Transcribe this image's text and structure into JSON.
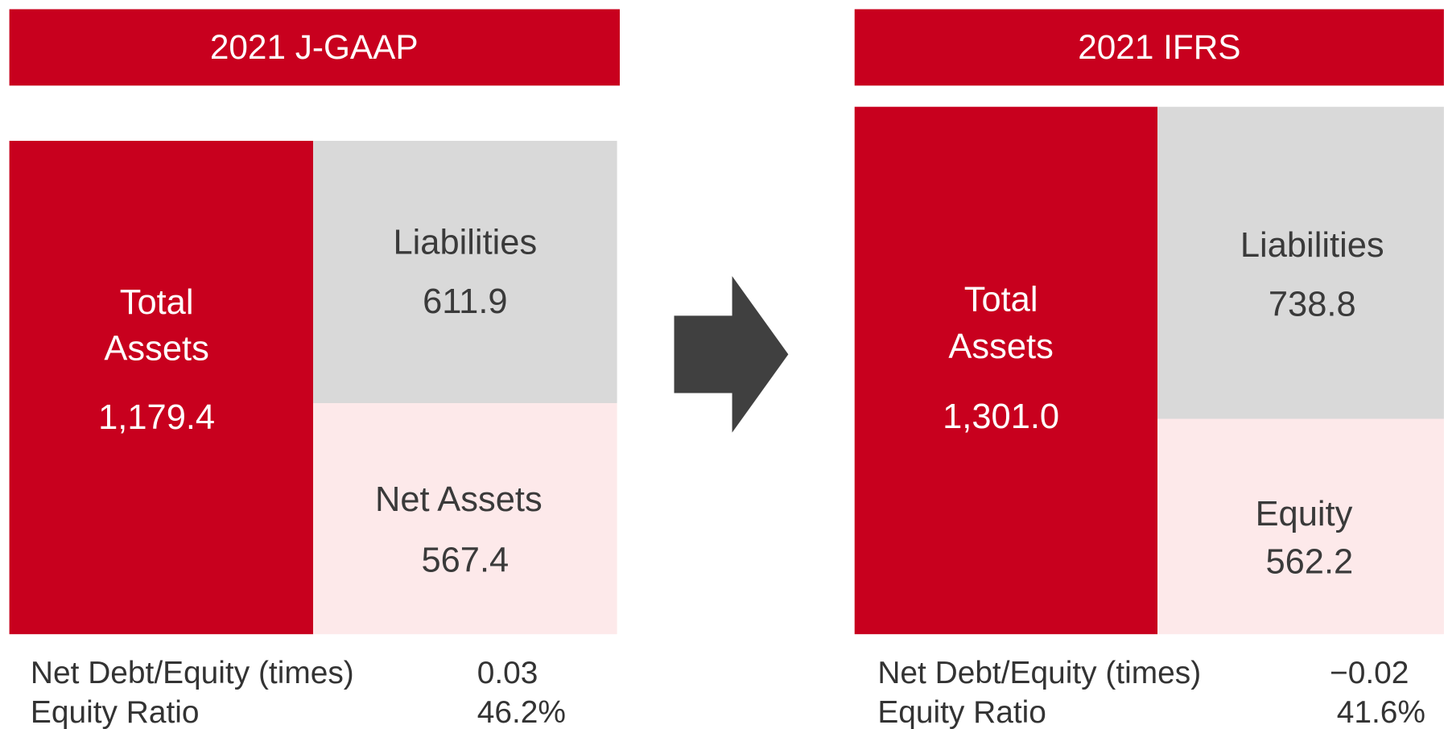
{
  "panels": [
    {
      "title": "2021 J-GAAP",
      "assets": {
        "label_lines": [
          "Total",
          "Assets"
        ],
        "value": "1,179.4"
      },
      "liabilities": {
        "label": "Liabilities",
        "value": "611.9"
      },
      "equity": {
        "label": "Net Assets",
        "value": "567.4"
      },
      "metrics": [
        {
          "label": "Net Debt/Equity (times)",
          "value": "0.03"
        },
        {
          "label": "Equity Ratio",
          "value": "46.2%"
        }
      ]
    },
    {
      "title": "2021 IFRS",
      "assets": {
        "label_lines": [
          "Total",
          "Assets"
        ],
        "value": "1,301.0"
      },
      "liabilities": {
        "label": "Liabilities",
        "value": "738.8"
      },
      "equity": {
        "label": "Equity",
        "value": "562.2"
      },
      "metrics": [
        {
          "label": "Net Debt/Equity (times)",
          "value": "−0.02"
        },
        {
          "label": "Equity Ratio",
          "value": "41.6%"
        }
      ]
    }
  ]
}
